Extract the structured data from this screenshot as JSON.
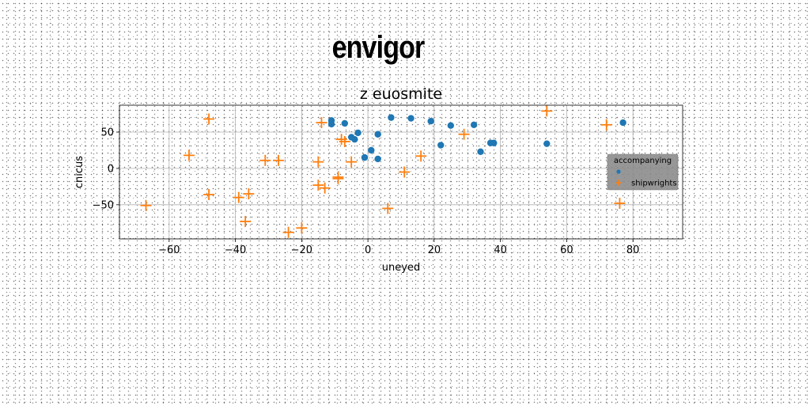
{
  "page": {
    "title": "envigor"
  },
  "chart_data": {
    "type": "scatter",
    "title": "z euosmite",
    "xlabel": "uneyed",
    "ylabel": "cnicus",
    "xlim": [
      -75,
      95
    ],
    "ylim": [
      -97,
      87
    ],
    "xticks": [
      -60,
      -40,
      -20,
      0,
      20,
      40,
      60,
      80
    ],
    "yticks": [
      -50,
      0,
      50
    ],
    "grid": true,
    "legend": {
      "title": "accompanying",
      "position": "center-right"
    },
    "series": [
      {
        "name": "",
        "marker": "circle",
        "color": "#1f77b4",
        "points": [
          [
            -11,
            66
          ],
          [
            -11,
            61
          ],
          [
            -7,
            62
          ],
          [
            -5,
            43
          ],
          [
            -4,
            40
          ],
          [
            -3,
            49
          ],
          [
            -1,
            15
          ],
          [
            1,
            25
          ],
          [
            3,
            13
          ],
          [
            3,
            47
          ],
          [
            7,
            70
          ],
          [
            13,
            69
          ],
          [
            19,
            65
          ],
          [
            22,
            32
          ],
          [
            25,
            59
          ],
          [
            32,
            60
          ],
          [
            34,
            23
          ],
          [
            37,
            35
          ],
          [
            38,
            35
          ],
          [
            54,
            34
          ],
          [
            77,
            63
          ]
        ]
      },
      {
        "name": "shipwrights",
        "marker": "plus",
        "color": "#ff7f0e",
        "points": [
          [
            -67,
            -51
          ],
          [
            -54,
            18
          ],
          [
            -48,
            68
          ],
          [
            -48,
            -36
          ],
          [
            -39,
            -40
          ],
          [
            -37,
            -73
          ],
          [
            -36,
            -35
          ],
          [
            -31,
            11
          ],
          [
            -27,
            11
          ],
          [
            -24,
            -88
          ],
          [
            -20,
            -82
          ],
          [
            -15,
            9
          ],
          [
            -15,
            -23
          ],
          [
            -14,
            63
          ],
          [
            -13,
            -27
          ],
          [
            -9,
            -12
          ],
          [
            -9,
            -14
          ],
          [
            -8,
            40
          ],
          [
            -7,
            37
          ],
          [
            -5,
            9
          ],
          [
            6,
            -55
          ],
          [
            11,
            -5
          ],
          [
            16,
            17
          ],
          [
            29,
            47
          ],
          [
            54,
            79
          ],
          [
            72,
            60
          ],
          [
            76,
            -48
          ]
        ]
      }
    ]
  }
}
